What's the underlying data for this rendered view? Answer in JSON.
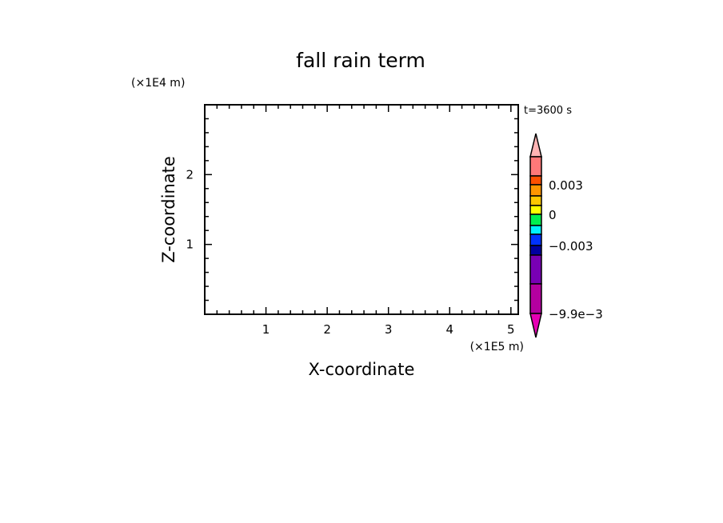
{
  "chart_data": {
    "type": "heatmap",
    "title": "fall rain term",
    "xlabel": "X-coordinate",
    "ylabel": "Z-coordinate",
    "x_unit_label": "(×1E5 m)",
    "y_unit_label": "(×1E4 m)",
    "time_label": "t=3600 s",
    "xlim": [
      0,
      5.12
    ],
    "ylim": [
      0,
      3
    ],
    "x_ticks": [
      1,
      2,
      3,
      4,
      5
    ],
    "x_tick_labels": [
      "1",
      "2",
      "3",
      "4",
      "5"
    ],
    "x_minor_step": 0.2,
    "y_ticks": [
      1,
      2
    ],
    "y_tick_labels": [
      "1",
      "2"
    ],
    "y_minor_step": 0.2,
    "grid": false,
    "data": [],
    "colorbar": {
      "extend": "both",
      "top_extension_color": "#ffb4b4",
      "bottom_extension_color": "#e600b4",
      "colors_top_to_bottom": [
        "#ff7878",
        "#ff5000",
        "#ff9600",
        "#ffc800",
        "#ffff00",
        "#00f050",
        "#00f0ff",
        "#0032ff",
        "#0000a0",
        "#7800b4",
        "#b400a0"
      ],
      "tick_labels": [
        "0.003",
        "0",
        "−0.003",
        "−9.9e−3"
      ]
    }
  }
}
